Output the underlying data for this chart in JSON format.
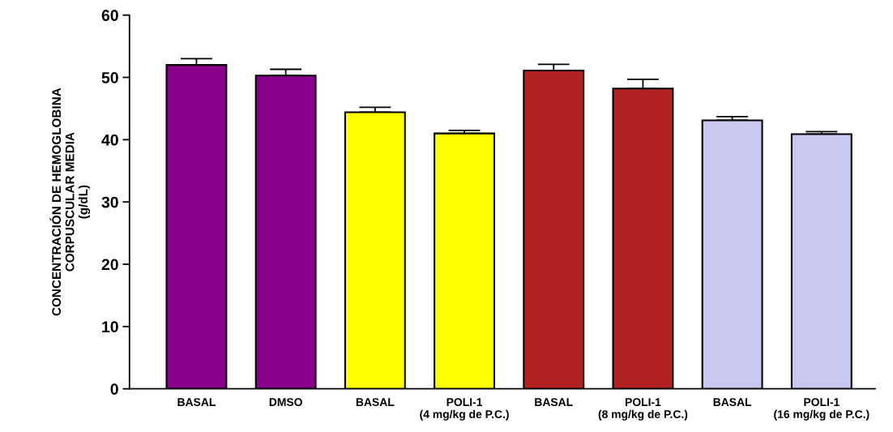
{
  "chart_data": {
    "type": "bar",
    "ylabel": "CONCENTRACIÓN DE HEMOGLOBINA\nCORPUSCULAR MEDIA\n(g/dL)",
    "categories": [
      "BASAL",
      "DMSO",
      "BASAL",
      "POLI-1\n(4 mg/kg de P.C.)",
      "BASAL",
      "POLI-1\n(8 mg/kg de P.C.)",
      "BASAL",
      "POLI-1\n(16 mg/kg de P.C.)"
    ],
    "values": [
      52.0,
      50.3,
      44.4,
      41.0,
      51.1,
      48.2,
      43.1,
      40.9
    ],
    "errors": [
      [
        52.0,
        53.0
      ],
      [
        50.3,
        51.3
      ],
      [
        44.4,
        45.2
      ],
      [
        41.0,
        41.5
      ],
      [
        51.1,
        52.1
      ],
      [
        48.2,
        49.7
      ],
      [
        43.1,
        43.7
      ],
      [
        40.9,
        41.3
      ]
    ],
    "colors": [
      "#8b008b",
      "#8b008b",
      "#ffff00",
      "#ffff00",
      "#b22222",
      "#b22222",
      "#c8c8f0",
      "#c8c8f0"
    ],
    "ylim": [
      0,
      60
    ],
    "yticks": [
      0,
      10,
      20,
      30,
      40,
      50,
      60
    ],
    "grid": false
  }
}
